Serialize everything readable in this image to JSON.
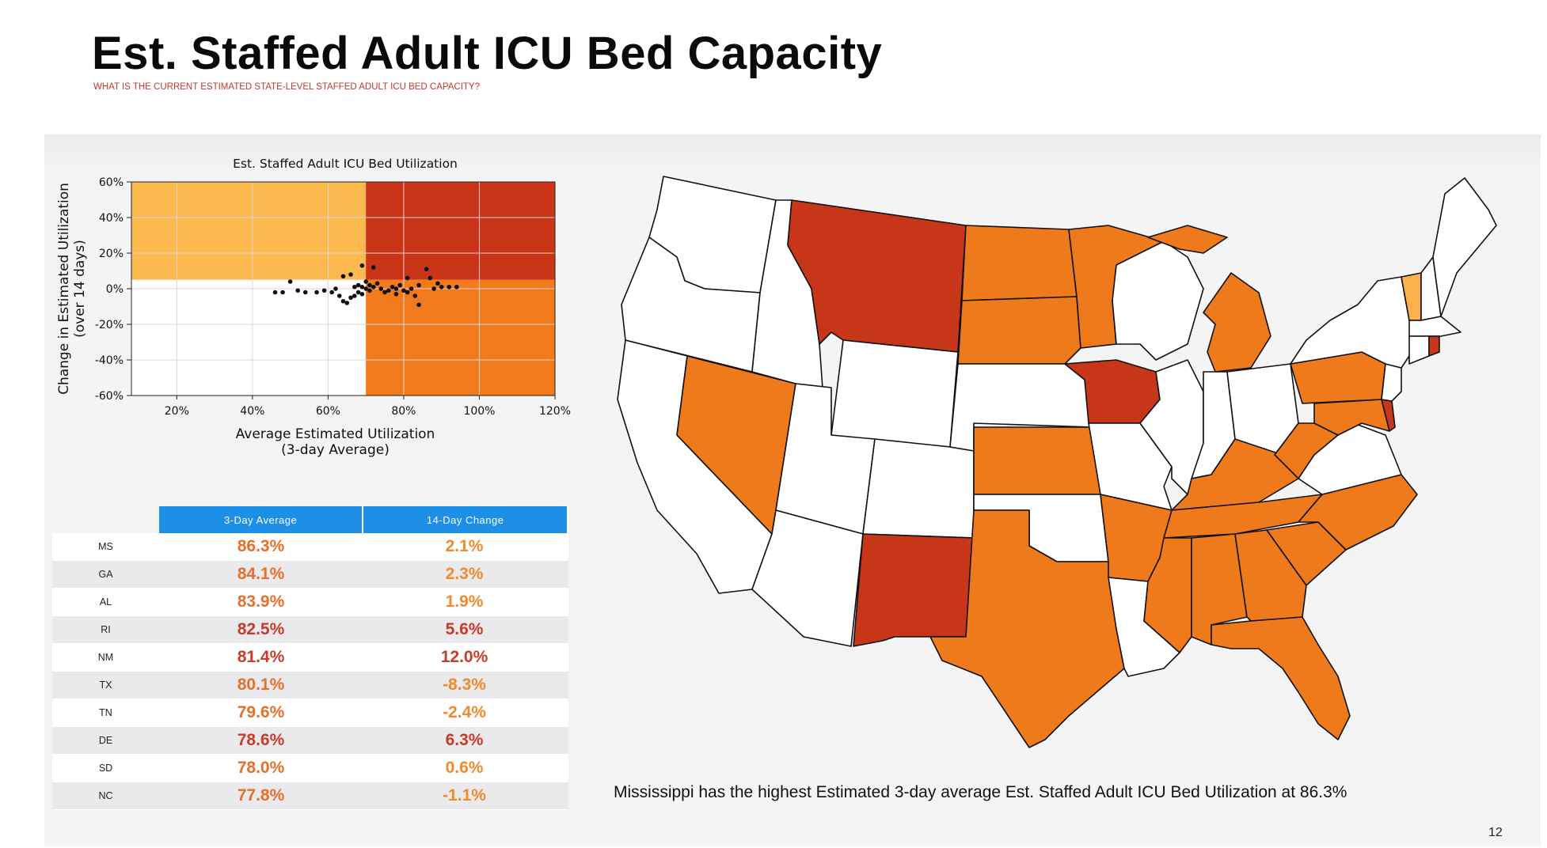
{
  "header": {
    "title": "Est. Staffed Adult ICU Bed Capacity",
    "subtitle": "WHAT IS THE CURRENT ESTIMATED STATE-LEVEL STAFFED ADULT ICU BED CAPACITY?"
  },
  "chart_data": {
    "type": "scatter",
    "title": "Est. Staffed Adult ICU Bed Utilization",
    "xlabel": "Average Estimated Utilization\n(3-day Average)",
    "ylabel": "Change in Estimated Utilization\n(over 14 days)",
    "xlim": [
      0.08,
      1.2
    ],
    "ylim": [
      -0.6,
      0.6
    ],
    "xticks": [
      "20%",
      "40%",
      "60%",
      "80%",
      "100%",
      "120%"
    ],
    "yticks": [
      "60%",
      "40%",
      "20%",
      "0%",
      "-20%",
      "-40%",
      "-60%"
    ],
    "grid": true,
    "quadrants": [
      {
        "x": [
          0.08,
          0.7
        ],
        "y": [
          0.05,
          0.6
        ],
        "color": "#fbb950"
      },
      {
        "x": [
          0.7,
          1.2
        ],
        "y": [
          0.05,
          0.6
        ],
        "color": "#c93516"
      },
      {
        "x": [
          0.08,
          0.7
        ],
        "y": [
          -0.6,
          0.05
        ],
        "color": "#ffffff"
      },
      {
        "x": [
          0.7,
          1.2
        ],
        "y": [
          -0.6,
          0.05
        ],
        "color": "#f07a1c"
      }
    ],
    "points": [
      [
        0.46,
        -0.02
      ],
      [
        0.48,
        -0.02
      ],
      [
        0.5,
        0.04
      ],
      [
        0.52,
        -0.01
      ],
      [
        0.54,
        -0.02
      ],
      [
        0.57,
        -0.02
      ],
      [
        0.59,
        -0.01
      ],
      [
        0.61,
        -0.02
      ],
      [
        0.62,
        0.0
      ],
      [
        0.63,
        -0.04
      ],
      [
        0.64,
        -0.07
      ],
      [
        0.65,
        -0.08
      ],
      [
        0.66,
        -0.05
      ],
      [
        0.67,
        -0.04
      ],
      [
        0.67,
        0.01
      ],
      [
        0.68,
        0.02
      ],
      [
        0.68,
        -0.02
      ],
      [
        0.69,
        0.01
      ],
      [
        0.69,
        -0.03
      ],
      [
        0.7,
        0.0
      ],
      [
        0.7,
        0.04
      ],
      [
        0.71,
        -0.01
      ],
      [
        0.71,
        0.02
      ],
      [
        0.72,
        0.01
      ],
      [
        0.72,
        0.12
      ],
      [
        0.73,
        0.03
      ],
      [
        0.74,
        0.0
      ],
      [
        0.75,
        -0.02
      ],
      [
        0.76,
        -0.01
      ],
      [
        0.77,
        0.01
      ],
      [
        0.78,
        0.0
      ],
      [
        0.78,
        -0.03
      ],
      [
        0.79,
        0.02
      ],
      [
        0.8,
        -0.01
      ],
      [
        0.81,
        -0.02
      ],
      [
        0.81,
        0.06
      ],
      [
        0.82,
        0.0
      ],
      [
        0.83,
        -0.04
      ],
      [
        0.84,
        0.02
      ],
      [
        0.84,
        -0.09
      ],
      [
        0.86,
        0.11
      ],
      [
        0.87,
        0.06
      ],
      [
        0.88,
        0.0
      ],
      [
        0.89,
        0.03
      ],
      [
        0.9,
        0.01
      ],
      [
        0.92,
        0.01
      ],
      [
        0.94,
        0.01
      ],
      [
        0.64,
        0.07
      ],
      [
        0.66,
        0.08
      ],
      [
        0.69,
        0.13
      ]
    ]
  },
  "table": {
    "headers": [
      "3-Day Average",
      "14-Day Change"
    ],
    "rows": [
      {
        "state": "MS",
        "avg": "86.3%",
        "change": "2.1%",
        "avg_color": "#e66f2c",
        "change_color": "#f08a2c"
      },
      {
        "state": "GA",
        "avg": "84.1%",
        "change": "2.3%",
        "avg_color": "#e66f2c",
        "change_color": "#f08a2c"
      },
      {
        "state": "AL",
        "avg": "83.9%",
        "change": "1.9%",
        "avg_color": "#e66f2c",
        "change_color": "#f08a2c"
      },
      {
        "state": "RI",
        "avg": "82.5%",
        "change": "5.6%",
        "avg_color": "#c93a2a",
        "change_color": "#c93a2a"
      },
      {
        "state": "NM",
        "avg": "81.4%",
        "change": "12.0%",
        "avg_color": "#c93a2a",
        "change_color": "#c93a2a"
      },
      {
        "state": "TX",
        "avg": "80.1%",
        "change": "-8.3%",
        "avg_color": "#e66f2c",
        "change_color": "#f08a2c"
      },
      {
        "state": "TN",
        "avg": "79.6%",
        "change": "-2.4%",
        "avg_color": "#e66f2c",
        "change_color": "#f08a2c"
      },
      {
        "state": "DE",
        "avg": "78.6%",
        "change": "6.3%",
        "avg_color": "#c93a2a",
        "change_color": "#c93a2a"
      },
      {
        "state": "SD",
        "avg": "78.0%",
        "change": "0.6%",
        "avg_color": "#e66f2c",
        "change_color": "#f08a2c"
      },
      {
        "state": "NC",
        "avg": "77.8%",
        "change": "-1.1%",
        "avg_color": "#e66f2c",
        "change_color": "#f08a2c"
      }
    ]
  },
  "map": {
    "colors": {
      "red": "#c8361a",
      "orange": "#ee7a1b",
      "light": "#fbb24c",
      "none": "#ffffff",
      "stroke": "#111111"
    }
  },
  "caption": "Mississippi has the highest Estimated 3-day average Est. Staffed Adult ICU Bed Utilization at 86.3%",
  "page_number": "12"
}
